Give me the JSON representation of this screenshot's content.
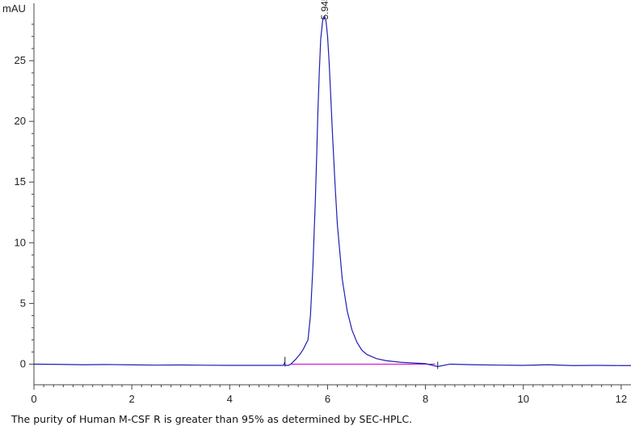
{
  "chart_data": {
    "type": "line",
    "ylabel": "mAU",
    "xlim": [
      0,
      12.2
    ],
    "ylim": [
      -1.7,
      30
    ],
    "x_ticks": [
      0,
      2,
      4,
      6,
      8,
      10,
      12
    ],
    "y_ticks": [
      0,
      5,
      10,
      15,
      20,
      25
    ],
    "grid": false,
    "colors": {
      "signal": "#1f1fb0",
      "baseline": "#cc00cc",
      "axis": "#444444"
    },
    "peak": {
      "label": "5.945",
      "x": 5.945,
      "y": 28.5
    },
    "baseline_segment": {
      "x": [
        5.25,
        8.2
      ],
      "y": 0
    },
    "series": [
      {
        "x": [
          0,
          0.5,
          1.0,
          1.5,
          2.0,
          2.5,
          3.0,
          3.5,
          4.0,
          4.5,
          5.0,
          5.1,
          5.12,
          5.14,
          5.2,
          5.25,
          5.35,
          5.45,
          5.5,
          5.6,
          5.65,
          5.7,
          5.75,
          5.78,
          5.8,
          5.83,
          5.86,
          5.9,
          5.92,
          5.945,
          5.97,
          6.0,
          6.03,
          6.06,
          6.1,
          6.15,
          6.2,
          6.3,
          6.4,
          6.5,
          6.6,
          6.7,
          6.8,
          7.0,
          7.2,
          7.5,
          8.0,
          8.25,
          8.5,
          9.0,
          9.5,
          10.0,
          10.5,
          11.0,
          11.5,
          12.0,
          12.2
        ],
        "y": [
          0.0,
          -0.02,
          -0.05,
          -0.03,
          -0.06,
          -0.08,
          -0.07,
          -0.09,
          -0.1,
          -0.1,
          -0.1,
          -0.1,
          0.1,
          -0.1,
          -0.1,
          0.0,
          0.4,
          0.9,
          1.2,
          2.0,
          4.0,
          8.0,
          13.5,
          17.5,
          20.5,
          24.0,
          26.8,
          28.3,
          28.6,
          28.6,
          28.2,
          27.0,
          25.0,
          22.5,
          19.0,
          15.0,
          11.5,
          7.0,
          4.4,
          2.8,
          1.8,
          1.15,
          0.8,
          0.45,
          0.28,
          0.15,
          0.04,
          -0.2,
          0.0,
          -0.05,
          -0.08,
          -0.1,
          -0.05,
          -0.12,
          -0.1,
          -0.12,
          -0.12
        ]
      }
    ]
  },
  "caption": "The purity of Human M-CSF R is greater than 95% as determined by SEC-HPLC."
}
